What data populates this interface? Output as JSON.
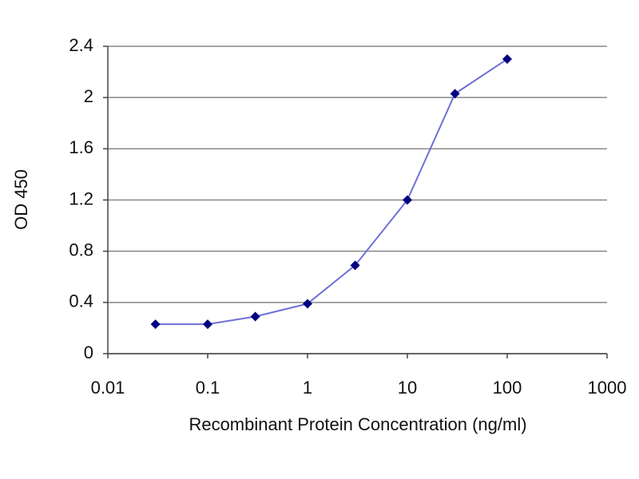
{
  "chart_data": {
    "type": "line",
    "xlabel": "Recombinant Protein Concentration (ng/ml)",
    "ylabel": "OD 450",
    "x": [
      0.03,
      0.1,
      0.3,
      1,
      3,
      10,
      30,
      100
    ],
    "series": [
      {
        "name": "OD 450",
        "color": "#6f6fd8",
        "marker_color": "#000080",
        "values": [
          0.23,
          0.23,
          0.29,
          0.39,
          0.69,
          1.2,
          2.03,
          2.3
        ]
      }
    ],
    "xscale": "log",
    "xlim": [
      0.01,
      1000
    ],
    "xticks": [
      0.01,
      0.1,
      1,
      10,
      100,
      1000
    ],
    "ylim": [
      0,
      2.4
    ],
    "yticks": [
      0,
      0.4,
      0.8,
      1.2,
      1.6,
      2,
      2.4
    ],
    "grid": true
  }
}
